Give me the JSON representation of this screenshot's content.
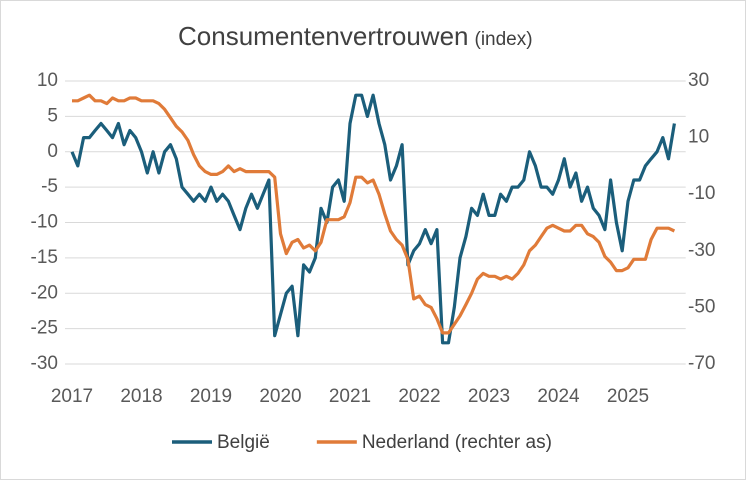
{
  "chart_data": {
    "type": "line",
    "title": "Consumentenvertrouwen",
    "subtitle": "(index)",
    "x": [
      2017,
      2017.083,
      2017.167,
      2017.25,
      2017.333,
      2017.417,
      2017.5,
      2017.583,
      2017.667,
      2017.75,
      2017.833,
      2017.917,
      2018,
      2018.083,
      2018.167,
      2018.25,
      2018.333,
      2018.417,
      2018.5,
      2018.583,
      2018.667,
      2018.75,
      2018.833,
      2018.917,
      2019,
      2019.083,
      2019.167,
      2019.25,
      2019.333,
      2019.417,
      2019.5,
      2019.583,
      2019.667,
      2019.75,
      2019.833,
      2019.917,
      2020,
      2020.083,
      2020.167,
      2020.25,
      2020.333,
      2020.417,
      2020.5,
      2020.583,
      2020.667,
      2020.75,
      2020.833,
      2020.917,
      2021,
      2021.083,
      2021.167,
      2021.25,
      2021.333,
      2021.417,
      2021.5,
      2021.583,
      2021.667,
      2021.75,
      2021.833,
      2021.917,
      2022,
      2022.083,
      2022.167,
      2022.25,
      2022.333,
      2022.417,
      2022.5,
      2022.583,
      2022.667,
      2022.75,
      2022.833,
      2022.917,
      2023,
      2023.083,
      2023.167,
      2023.25,
      2023.333,
      2023.417,
      2023.5,
      2023.583,
      2023.667,
      2023.75,
      2023.833,
      2023.917,
      2024,
      2024.083,
      2024.167,
      2024.25,
      2024.333,
      2024.417,
      2024.5,
      2024.583,
      2024.667,
      2024.75,
      2024.833,
      2024.917,
      2025,
      2025.083,
      2025.167,
      2025.25,
      2025.333,
      2025.417,
      2025.5,
      2025.583,
      2025.667
    ],
    "xlim": [
      2017,
      2025.83
    ],
    "xticks": [
      2017,
      2018,
      2019,
      2020,
      2021,
      2022,
      2023,
      2024,
      2025
    ],
    "ylim": [
      -30,
      10
    ],
    "yticks": [
      10,
      5,
      0,
      -5,
      -10,
      -15,
      -20,
      -25,
      -30
    ],
    "y2lim": [
      -70,
      30
    ],
    "y2ticks": [
      30,
      10,
      -10,
      -30,
      -50,
      -70
    ],
    "grid": true,
    "legend": "bottom",
    "series": [
      {
        "name": "België",
        "color": "#1b5e7b",
        "values": [
          0,
          -2,
          2,
          2,
          3,
          4,
          3,
          2,
          4,
          1,
          3,
          2,
          0,
          -3,
          0,
          -3,
          0,
          1,
          -1,
          -5,
          -6,
          -7,
          -6,
          -7,
          -5,
          -7,
          -6,
          -7,
          -9,
          -11,
          -8,
          -6,
          -8,
          -6,
          -4,
          -26,
          -23,
          -20,
          -19,
          -26,
          -16,
          -17,
          -15,
          -8,
          -10,
          -5,
          -4,
          -7,
          4,
          8,
          8,
          5,
          8,
          4,
          1,
          -4,
          -2,
          1,
          -16,
          -14,
          -13,
          -11,
          -13,
          -11,
          -27,
          -27,
          -22,
          -15,
          -12,
          -8,
          -9,
          -6,
          -9,
          -9,
          -6,
          -7,
          -5,
          -5,
          -4,
          0,
          -2,
          -5,
          -5,
          -6,
          -4,
          -1,
          -5,
          -3,
          -7,
          -5,
          -8,
          -9,
          -11,
          -4,
          -10,
          -14,
          -7,
          -4,
          -4,
          -2,
          -1,
          0,
          2,
          -1,
          4
        ]
      },
      {
        "name": "Nederland (rechter as)",
        "color": "#e07b39",
        "axis": "y2",
        "values": [
          23,
          23,
          24,
          25,
          23,
          23,
          22,
          24,
          23,
          23,
          24,
          24,
          23,
          23,
          23,
          22,
          20,
          17,
          14,
          12,
          9,
          4,
          0,
          -2,
          -3,
          -3,
          -2,
          0,
          -2,
          -1,
          -2,
          -2,
          -2,
          -2,
          -2,
          -4,
          -24,
          -31,
          -27,
          -26,
          -29,
          -28,
          -30,
          -27,
          -19,
          -19,
          -19,
          -18,
          -13,
          -4,
          -4,
          -6,
          -5,
          -10,
          -17,
          -23,
          -26,
          -28,
          -33,
          -47,
          -46,
          -49,
          -50,
          -54,
          -59,
          -59,
          -56,
          -53,
          -49,
          -45,
          -40,
          -38,
          -39,
          -39,
          -40,
          -39,
          -40,
          -38,
          -35,
          -30,
          -28,
          -25,
          -22,
          -21,
          -22,
          -23,
          -23,
          -21,
          -21,
          -24,
          -25,
          -27,
          -32,
          -34,
          -37,
          -37,
          -36,
          -33,
          -33,
          -33,
          -26,
          -22,
          -22,
          -22,
          -23
        ]
      }
    ]
  }
}
